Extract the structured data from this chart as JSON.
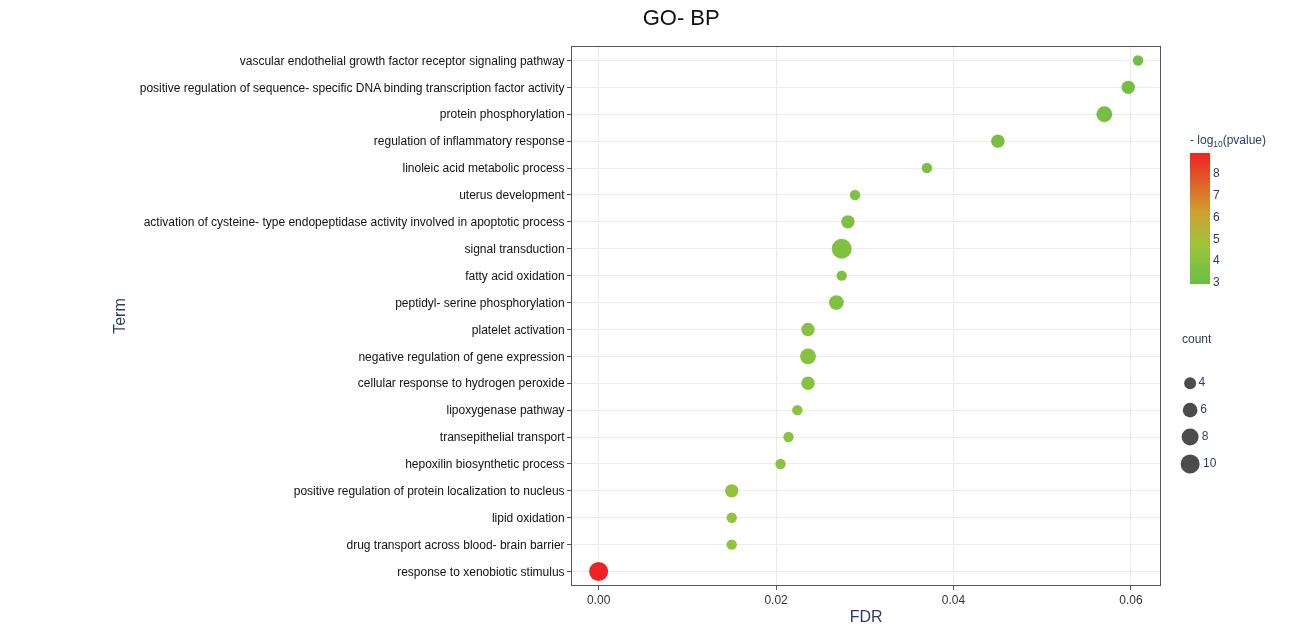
{
  "chart_data": {
    "type": "bubble",
    "title": "GO- BP",
    "xlabel": "FDR",
    "ylabel": "Term",
    "orientation": "horizontal",
    "categories": [
      "vascular endothelial growth factor receptor signaling pathway",
      "positive regulation of sequence- specific DNA binding transcription factor activity",
      "protein phosphorylation",
      "regulation of inflammatory response",
      "linoleic acid metabolic process",
      "uterus development",
      "activation of cysteine- type endopeptidase activity involved in apoptotic process",
      "signal transduction",
      "fatty acid oxidation",
      "peptidyl- serine phosphorylation",
      "platelet activation",
      "negative regulation of gene expression",
      "cellular response to hydrogen peroxide",
      "lipoxygenase pathway",
      "transepithelial transport",
      "hepoxilin biosynthetic process",
      "positive regulation of protein localization to nucleus",
      "lipid oxidation",
      "drug transport across blood- brain barrier",
      "response to xenobiotic stimulus"
    ],
    "values": [
      0.0608,
      0.0597,
      0.057,
      0.045,
      0.037,
      0.0289,
      0.0281,
      0.0274,
      0.0274,
      0.0268,
      0.0236,
      0.0236,
      0.0236,
      0.0224,
      0.0214,
      0.0205,
      0.015,
      0.015,
      0.015,
      0.0
    ],
    "sizes": [
      3,
      5,
      7,
      5,
      3,
      3,
      5,
      11,
      3,
      6,
      5,
      7,
      5,
      3,
      3,
      3,
      5,
      3,
      3,
      10
    ],
    "cvalues": [
      3.1,
      3.2,
      3.3,
      3.4,
      3.5,
      3.6,
      3.6,
      3.7,
      3.7,
      3.7,
      3.9,
      3.9,
      3.9,
      4.0,
      4.0,
      4.1,
      4.3,
      4.3,
      4.3,
      8.9
    ],
    "size_legend": [
      4,
      6,
      8,
      10
    ],
    "legend_title": "count",
    "clabel": "- log$_{10}$(pvalue)",
    "clim": [
      2.9,
      8.9
    ],
    "cticks": [
      3,
      4,
      5,
      6,
      7,
      8
    ],
    "xlim": [
      -0.003,
      0.0633
    ],
    "xticks": [
      {
        "value": 0,
        "label": "0.00"
      },
      {
        "value": 0.02,
        "label": "0.02"
      },
      {
        "value": 0.04,
        "label": "0.04"
      },
      {
        "value": 0.06,
        "label": "0.06"
      }
    ],
    "grid": true
  }
}
